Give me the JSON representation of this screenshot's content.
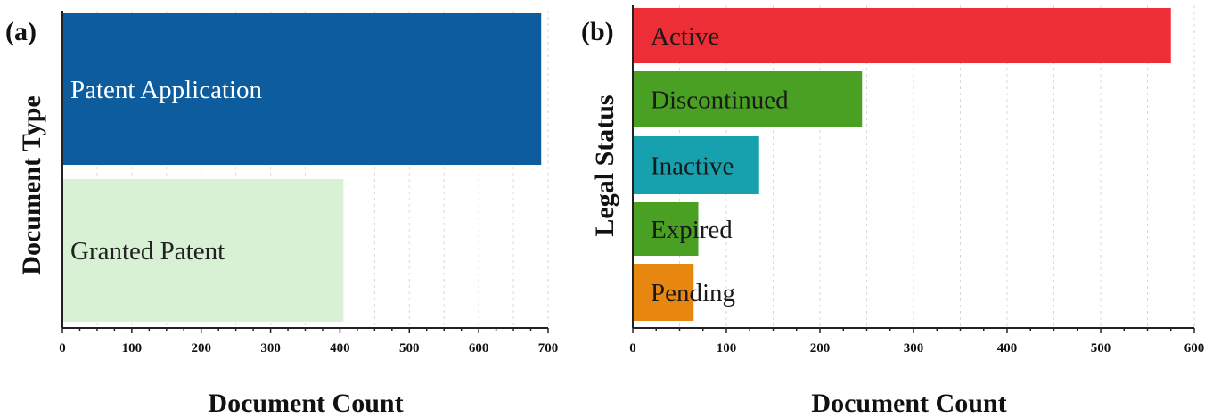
{
  "chart_data": [
    {
      "panel": "(a)",
      "type": "bar",
      "orientation": "horizontal",
      "xlabel": "Document Count",
      "ylabel": "Document Type",
      "xlim": [
        0,
        700
      ],
      "xticks": [
        0,
        100,
        200,
        300,
        400,
        500,
        600,
        700
      ],
      "grid": "vertical dashed",
      "categories": [
        "Patent Application",
        "Granted Patent"
      ],
      "values": [
        690,
        405
      ],
      "colors": [
        "#0d5c9e",
        "#d8f0d4"
      ],
      "label_colors": [
        "#ffffff",
        "#222222"
      ]
    },
    {
      "panel": "(b)",
      "type": "bar",
      "orientation": "horizontal",
      "xlabel": "Document Count",
      "ylabel": "Legal Status",
      "xlim": [
        0,
        600
      ],
      "xticks": [
        0,
        100,
        200,
        300,
        400,
        500,
        600
      ],
      "grid": "vertical dashed",
      "categories": [
        "Active",
        "Discontinued",
        "Inactive",
        "Expired",
        "Pending"
      ],
      "values": [
        575,
        245,
        135,
        70,
        65
      ],
      "colors": [
        "#ee2e36",
        "#4aa023",
        "#17a0ae",
        "#4aa023",
        "#e8870f"
      ],
      "label_colors": [
        "#1a1a1a",
        "#1a1a1a",
        "#1a1a1a",
        "#1a1a1a",
        "#1a1a1a"
      ]
    }
  ]
}
